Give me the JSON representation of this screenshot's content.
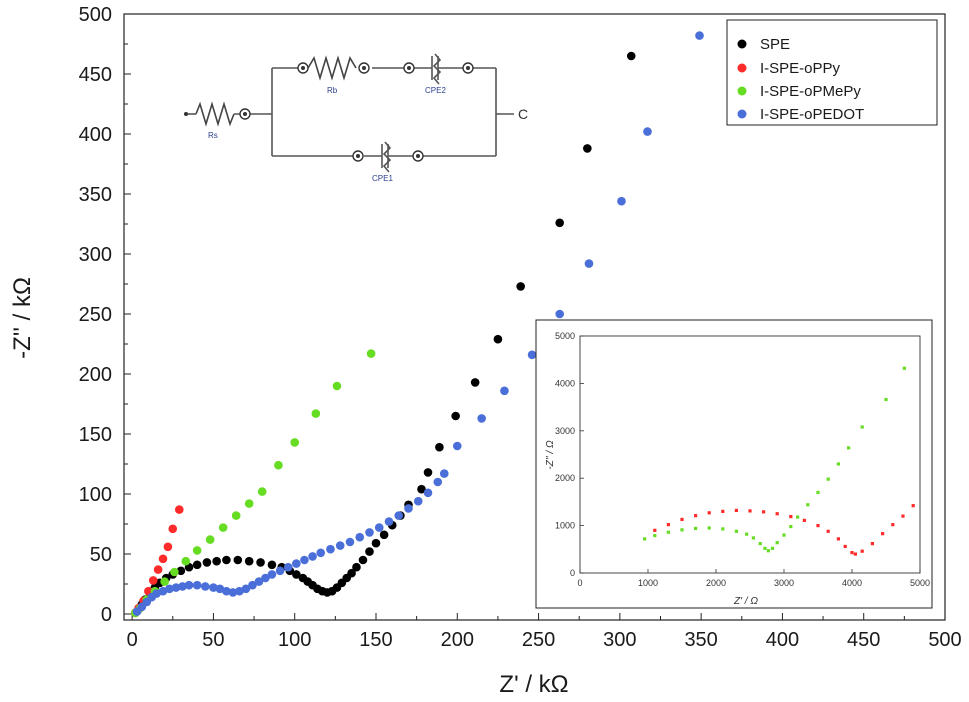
{
  "chart_data": [
    {
      "type": "scatter",
      "title": "",
      "xlabel": "Z' / kΩ",
      "ylabel": "-Z'' / kΩ",
      "xlim": [
        -5,
        500
      ],
      "ylim": [
        -5,
        500
      ],
      "xticks": [
        "0",
        "50",
        "100",
        "150",
        "200",
        "250",
        "300",
        "350",
        "400",
        "450",
        "500"
      ],
      "yticks": [
        "0",
        "50",
        "100",
        "150",
        "200",
        "250",
        "300",
        "350",
        "400",
        "450",
        "500"
      ],
      "grid": false,
      "legend_position": "top-right",
      "series": [
        {
          "name": "SPE",
          "color": "#000000",
          "points": [
            [
              2,
              1
            ],
            [
              4,
              4
            ],
            [
              6,
              8
            ],
            [
              8,
              12
            ],
            [
              11,
              17
            ],
            [
              14,
              22
            ],
            [
              17,
              26
            ],
            [
              21,
              30
            ],
            [
              25,
              33
            ],
            [
              30,
              36
            ],
            [
              35,
              39
            ],
            [
              40,
              41
            ],
            [
              46,
              43
            ],
            [
              52,
              44
            ],
            [
              58,
              45
            ],
            [
              65,
              45
            ],
            [
              72,
              44
            ],
            [
              79,
              43
            ],
            [
              86,
              41
            ],
            [
              92,
              39
            ],
            [
              97,
              36
            ],
            [
              101,
              33
            ],
            [
              105,
              30
            ],
            [
              108,
              27
            ],
            [
              111,
              24
            ],
            [
              114,
              21
            ],
            [
              117,
              19
            ],
            [
              120,
              18
            ],
            [
              123,
              19
            ],
            [
              126,
              22
            ],
            [
              129,
              26
            ],
            [
              132,
              30
            ],
            [
              135,
              34
            ],
            [
              138,
              39
            ],
            [
              142,
              45
            ],
            [
              146,
              52
            ],
            [
              150,
              59
            ],
            [
              155,
              66
            ],
            [
              160,
              74
            ],
            [
              165,
              82
            ],
            [
              170,
              91
            ],
            [
              178,
              104
            ],
            [
              182,
              118
            ],
            [
              189,
              139
            ],
            [
              199,
              165
            ],
            [
              211,
              193
            ],
            [
              225,
              229
            ],
            [
              239,
              273
            ],
            [
              263,
              326
            ],
            [
              280,
              388
            ],
            [
              307,
              465
            ]
          ]
        },
        {
          "name": "I-SPE-oPPy",
          "color": "#ff2a2a",
          "points": [
            [
              2,
              1
            ],
            [
              4,
              5
            ],
            [
              7,
              11
            ],
            [
              10,
              19
            ],
            [
              13,
              28
            ],
            [
              16,
              37
            ],
            [
              19,
              46
            ],
            [
              22,
              56
            ],
            [
              25,
              71
            ],
            [
              29,
              87
            ]
          ]
        },
        {
          "name": "I-SPE-oPMePy",
          "color": "#66dd22",
          "points": [
            [
              2,
              1
            ],
            [
              5,
              5
            ],
            [
              9,
              12
            ],
            [
              14,
              19
            ],
            [
              20,
              27
            ],
            [
              26,
              35
            ],
            [
              33,
              44
            ],
            [
              40,
              53
            ],
            [
              48,
              62
            ],
            [
              56,
              72
            ],
            [
              64,
              82
            ],
            [
              72,
              92
            ],
            [
              80,
              102
            ],
            [
              90,
              124
            ],
            [
              100,
              143
            ],
            [
              113,
              167
            ],
            [
              126,
              190
            ],
            [
              147,
              217
            ]
          ]
        },
        {
          "name": "I-SPE-oPEDOT",
          "color": "#4a6fd8",
          "points": [
            [
              3,
              2
            ],
            [
              6,
              6
            ],
            [
              9,
              10
            ],
            [
              12,
              14
            ],
            [
              15,
              17
            ],
            [
              19,
              19
            ],
            [
              23,
              21
            ],
            [
              27,
              22
            ],
            [
              31,
              23
            ],
            [
              35,
              24
            ],
            [
              40,
              24
            ],
            [
              45,
              23
            ],
            [
              50,
              22
            ],
            [
              54,
              21
            ],
            [
              58,
              19
            ],
            [
              62,
              18
            ],
            [
              66,
              19
            ],
            [
              70,
              21
            ],
            [
              74,
              24
            ],
            [
              78,
              27
            ],
            [
              82,
              30
            ],
            [
              86,
              33
            ],
            [
              91,
              36
            ],
            [
              96,
              39
            ],
            [
              101,
              42
            ],
            [
              106,
              45
            ],
            [
              111,
              48
            ],
            [
              116,
              51
            ],
            [
              122,
              54
            ],
            [
              128,
              57
            ],
            [
              134,
              60
            ],
            [
              140,
              64
            ],
            [
              146,
              68
            ],
            [
              152,
              72
            ],
            [
              158,
              77
            ],
            [
              164,
              82
            ],
            [
              170,
              88
            ],
            [
              176,
              94
            ],
            [
              182,
              101
            ],
            [
              188,
              110
            ],
            [
              192,
              117
            ],
            [
              200,
              140
            ],
            [
              215,
              163
            ],
            [
              229,
              186
            ],
            [
              246,
              216
            ],
            [
              263,
              250
            ],
            [
              281,
              292
            ],
            [
              301,
              344
            ],
            [
              317,
              402
            ],
            [
              349,
              482
            ]
          ]
        }
      ]
    },
    {
      "type": "scatter",
      "title": "",
      "xlabel": "Z' / Ω",
      "ylabel": "-Z'' / Ω",
      "xlim": [
        0,
        5000
      ],
      "ylim": [
        0,
        5000
      ],
      "xticks": [
        "0",
        "1000",
        "2000",
        "3000",
        "4000",
        "5000"
      ],
      "yticks": [
        "0",
        "1000",
        "2000",
        "3000",
        "4000",
        "5000"
      ],
      "grid": false,
      "series": [
        {
          "name": "I-SPE-oPPy",
          "color": "#ff2a2a",
          "points": [
            [
              1100,
              900
            ],
            [
              1300,
              1020
            ],
            [
              1500,
              1130
            ],
            [
              1700,
              1210
            ],
            [
              1900,
              1270
            ],
            [
              2100,
              1300
            ],
            [
              2300,
              1320
            ],
            [
              2500,
              1310
            ],
            [
              2700,
              1290
            ],
            [
              2900,
              1250
            ],
            [
              3100,
              1190
            ],
            [
              3300,
              1110
            ],
            [
              3500,
              1000
            ],
            [
              3650,
              880
            ],
            [
              3800,
              720
            ],
            [
              3900,
              560
            ],
            [
              4000,
              430
            ],
            [
              4050,
              400
            ],
            [
              4150,
              460
            ],
            [
              4300,
              620
            ],
            [
              4450,
              830
            ],
            [
              4600,
              1020
            ],
            [
              4750,
              1200
            ],
            [
              4900,
              1420
            ]
          ]
        },
        {
          "name": "I-SPE-oPMePy",
          "color": "#66dd22",
          "points": [
            [
              950,
              720
            ],
            [
              1100,
              790
            ],
            [
              1300,
              860
            ],
            [
              1500,
              910
            ],
            [
              1700,
              940
            ],
            [
              1900,
              950
            ],
            [
              2100,
              930
            ],
            [
              2300,
              880
            ],
            [
              2450,
              820
            ],
            [
              2550,
              740
            ],
            [
              2650,
              620
            ],
            [
              2720,
              520
            ],
            [
              2770,
              470
            ],
            [
              2830,
              520
            ],
            [
              2900,
              640
            ],
            [
              3000,
              800
            ],
            [
              3100,
              980
            ],
            [
              3200,
              1180
            ],
            [
              3350,
              1440
            ],
            [
              3500,
              1700
            ],
            [
              3650,
              1980
            ],
            [
              3800,
              2300
            ],
            [
              3950,
              2640
            ],
            [
              4150,
              3080
            ],
            [
              4500,
              3660
            ],
            [
              4770,
              4320
            ]
          ]
        }
      ]
    }
  ],
  "circuit": {
    "labels": {
      "rs": "Rs",
      "rb": "Rb",
      "cpe1": "CPE1",
      "cpe2": "CPE2",
      "c": "C"
    }
  }
}
